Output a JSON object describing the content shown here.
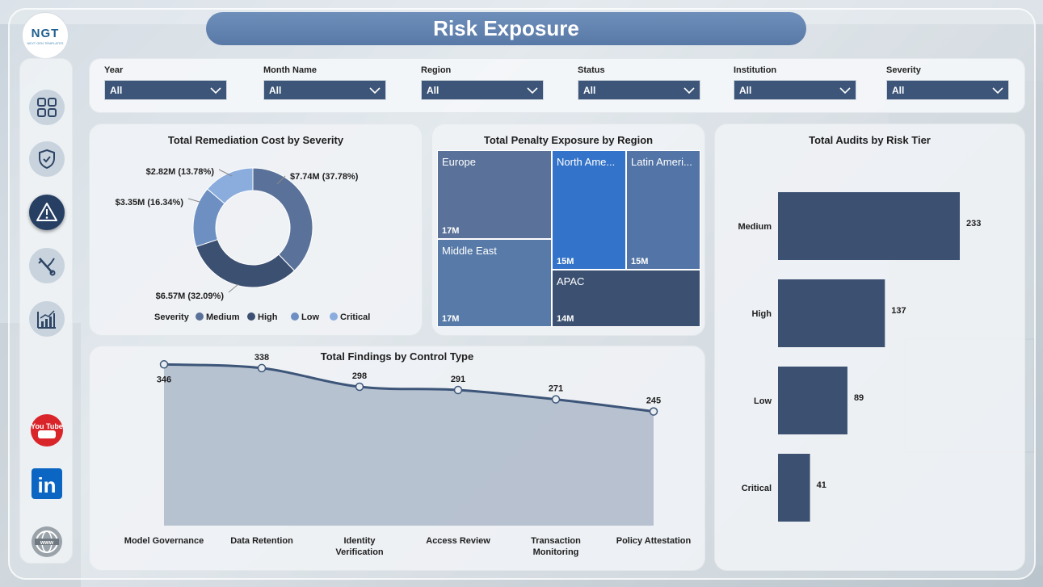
{
  "title": "Risk Exposure",
  "logo": {
    "text": "NGT",
    "sub": "NEXT GEN TEMPLATES"
  },
  "sidebar": {
    "items": [
      {
        "icon": "dashboard-grid-icon"
      },
      {
        "icon": "shield-check-icon"
      },
      {
        "icon": "warning-icon",
        "active": true
      },
      {
        "icon": "tools-icon"
      },
      {
        "icon": "chart-icon"
      }
    ],
    "social": [
      {
        "icon": "youtube-icon",
        "text": "You Tube"
      },
      {
        "icon": "linkedin-icon",
        "text": "in"
      },
      {
        "icon": "globe-icon",
        "text": "www"
      }
    ]
  },
  "filters": [
    {
      "label": "Year",
      "value": "All"
    },
    {
      "label": "Month Name",
      "value": "All"
    },
    {
      "label": "Region",
      "value": "All"
    },
    {
      "label": "Status",
      "value": "All"
    },
    {
      "label": "Institution",
      "value": "All"
    },
    {
      "label": "Severity",
      "value": "All"
    }
  ],
  "colors": {
    "medium": "#5a7299",
    "high": "#3c5172",
    "low": "#6d8fc2",
    "critical": "#8aadde",
    "bar": "#3c5172",
    "line": "#3c5578",
    "area": "#a4b2c4"
  },
  "chart_data": [
    {
      "type": "pie",
      "title": "Total Remediation Cost by Severity",
      "legend_title": "Severity",
      "legend_position": "bottom",
      "slices": [
        {
          "name": "Medium",
          "value": 7.74,
          "label": "$7.74M (37.78%)"
        },
        {
          "name": "High",
          "value": 6.57,
          "label": "$6.57M (32.09%)"
        },
        {
          "name": "Low",
          "value": 3.35,
          "label": "$3.35M (16.34%)"
        },
        {
          "name": "Critical",
          "value": 2.82,
          "label": "$2.82M (13.78%)"
        }
      ]
    },
    {
      "type": "heatmap",
      "title": "Total Penalty Exposure by Region",
      "cells": [
        {
          "name": "Europe",
          "label": "17M"
        },
        {
          "name": "Middle East",
          "label": "17M"
        },
        {
          "name": "North Ame...",
          "label": "15M"
        },
        {
          "name": "Latin Ameri...",
          "label": "15M"
        },
        {
          "name": "APAC",
          "label": "14M"
        }
      ]
    },
    {
      "type": "bar",
      "title": "Total Audits by Risk Tier",
      "categories": [
        "Medium",
        "High",
        "Low",
        "Critical"
      ],
      "values": [
        233,
        137,
        89,
        41
      ]
    },
    {
      "type": "area",
      "title": "Total Findings by Control Type",
      "categories": [
        "Model Governance",
        "Data Retention",
        "Identity Verification",
        "Access Review",
        "Transaction Monitoring",
        "Policy Attestation"
      ],
      "values": [
        346,
        338,
        298,
        291,
        271,
        245
      ],
      "ylim": [
        0,
        350
      ]
    }
  ]
}
